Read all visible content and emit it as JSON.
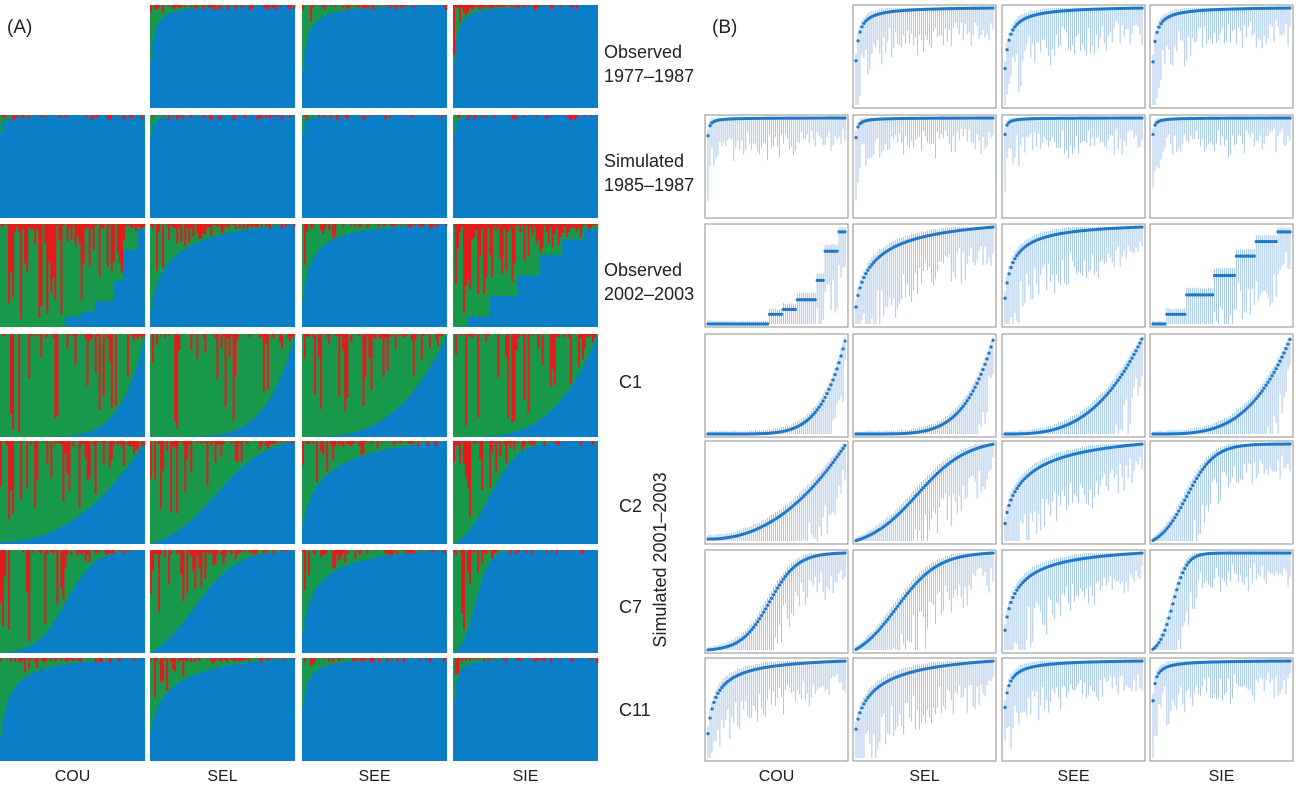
{
  "panel_a": {
    "label": "(A)"
  },
  "panel_b": {
    "label": "(B)"
  },
  "columns": [
    "COU",
    "SEL",
    "SEE",
    "SIE"
  ],
  "rows": [
    {
      "key": "obs1977",
      "lines": [
        "Observed",
        "1977–1987"
      ]
    },
    {
      "key": "sim1985",
      "lines": [
        "Simulated",
        "1985–1987"
      ]
    },
    {
      "key": "obs2002",
      "lines": [
        "Observed",
        "2002–2003"
      ]
    },
    {
      "key": "c1",
      "lines": [
        "C1"
      ]
    },
    {
      "key": "c2",
      "lines": [
        "C2"
      ]
    },
    {
      "key": "c7",
      "lines": [
        "C7"
      ]
    },
    {
      "key": "c11",
      "lines": [
        "C11"
      ]
    }
  ],
  "group_label": "Simulated 2001–2003",
  "colors": {
    "blue": "#0a7ec6",
    "green": "#18994a",
    "red": "#e41a1c",
    "point": "#1f78c8",
    "errorbar": "#9ec2e6",
    "frame": "#8c8c8c"
  },
  "chart_data": {
    "type": "bar",
    "panels": [
      "A",
      "B"
    ],
    "series": [
      {
        "name": "blue"
      },
      {
        "name": "green"
      },
      {
        "name": "red"
      }
    ],
    "grid": [
      {
        "row": "obs1977",
        "cells": [
          null,
          {
            "shape": "concave",
            "k": 0.03,
            "floor": 0.02,
            "red": 0.3
          },
          {
            "shape": "concave",
            "k": 0.05,
            "floor": 0.02,
            "red": 0.3
          },
          {
            "shape": "concave",
            "k": 0.03,
            "floor": 0.0,
            "red": 0.6
          }
        ]
      },
      {
        "row": "sim1985",
        "cells": [
          {
            "shape": "concave",
            "k": 0.006,
            "floor": 0.3,
            "red": 0.1
          },
          {
            "shape": "concave",
            "k": 0.008,
            "floor": 0.35,
            "red": 0.1
          },
          {
            "shape": "concave",
            "k": 0.006,
            "floor": 0.35,
            "red": 0.1
          },
          {
            "shape": "concave",
            "k": 0.006,
            "floor": 0.35,
            "red": 0.1
          }
        ]
      },
      {
        "row": "obs2002",
        "cells": [
          {
            "shape": "steps",
            "steps": [
              [
                0,
                0.0
              ],
              [
                0.4,
                0.0
              ],
              [
                0.45,
                0.1
              ],
              [
                0.55,
                0.15
              ],
              [
                0.65,
                0.25
              ],
              [
                0.78,
                0.45
              ],
              [
                0.85,
                0.75
              ],
              [
                0.95,
                0.95
              ],
              [
                1.0,
                1.0
              ]
            ],
            "red": 0.55
          },
          {
            "shape": "concave",
            "k": 0.3,
            "floor": 0.0,
            "red": 0.45
          },
          {
            "shape": "concave",
            "k": 0.12,
            "floor": 0.02,
            "red": 0.35
          },
          {
            "shape": "steps",
            "steps": [
              [
                0,
                0.0
              ],
              [
                0.1,
                0.1
              ],
              [
                0.25,
                0.3
              ],
              [
                0.45,
                0.5
              ],
              [
                0.6,
                0.7
              ],
              [
                0.75,
                0.85
              ],
              [
                0.9,
                0.95
              ],
              [
                1.0,
                1.0
              ]
            ],
            "red": 0.7
          }
        ]
      },
      {
        "row": "c1",
        "cells": [
          {
            "shape": "convex",
            "k": 6.0,
            "floor": 0.0,
            "red": 0.25
          },
          {
            "shape": "convex",
            "k": 5.0,
            "floor": 0.0,
            "red": 0.35
          },
          {
            "shape": "convex",
            "k": 3.0,
            "floor": 0.0,
            "red": 0.3
          },
          {
            "shape": "convex",
            "k": 3.5,
            "floor": 0.0,
            "red": 0.3
          }
        ]
      },
      {
        "row": "c2",
        "cells": [
          {
            "shape": "convex",
            "k": 2.2,
            "floor": 0.02,
            "red": 0.4
          },
          {
            "shape": "sigmoid",
            "mid": 0.45,
            "w": 0.18,
            "red": 0.45
          },
          {
            "shape": "concave",
            "k": 0.35,
            "floor": 0.02,
            "red": 0.3
          },
          {
            "shape": "sigmoid",
            "mid": 0.25,
            "w": 0.1,
            "red": 0.45
          }
        ]
      },
      {
        "row": "c7",
        "cells": [
          {
            "shape": "sigmoid",
            "mid": 0.45,
            "w": 0.1,
            "red": 0.45
          },
          {
            "shape": "sigmoid",
            "mid": 0.3,
            "w": 0.15,
            "red": 0.45
          },
          {
            "shape": "concave",
            "k": 0.2,
            "floor": 0.0,
            "red": 0.3
          },
          {
            "shape": "sigmoid",
            "mid": 0.15,
            "w": 0.05,
            "red": 0.4
          }
        ]
      },
      {
        "row": "c11",
        "cells": [
          {
            "shape": "concave",
            "k": 0.12,
            "floor": 0.0,
            "red": 0.4
          },
          {
            "shape": "concave",
            "k": 0.3,
            "floor": 0.15,
            "red": 0.4
          },
          {
            "shape": "concave",
            "k": 0.05,
            "floor": 0.25,
            "red": 0.2
          },
          {
            "shape": "concave",
            "k": 0.02,
            "floor": 0.15,
            "red": 0.3
          }
        ]
      }
    ]
  }
}
